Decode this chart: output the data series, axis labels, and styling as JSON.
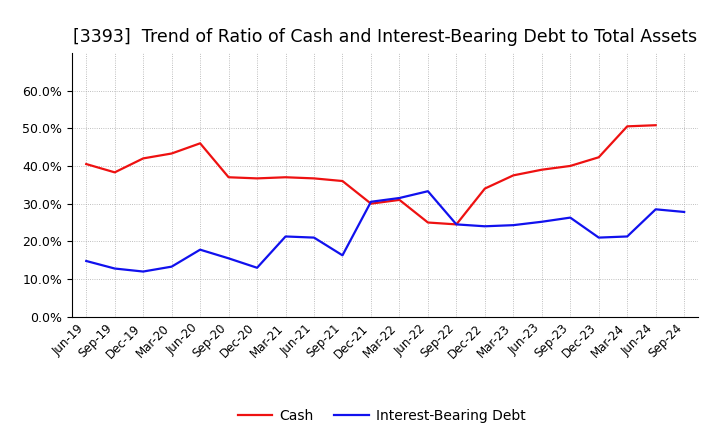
{
  "title": "[3393]  Trend of Ratio of Cash and Interest-Bearing Debt to Total Assets",
  "x_labels": [
    "Jun-19",
    "Sep-19",
    "Dec-19",
    "Mar-20",
    "Jun-20",
    "Sep-20",
    "Dec-20",
    "Mar-21",
    "Jun-21",
    "Sep-21",
    "Dec-21",
    "Mar-22",
    "Jun-22",
    "Sep-22",
    "Dec-22",
    "Mar-23",
    "Jun-23",
    "Sep-23",
    "Dec-23",
    "Mar-24",
    "Jun-24",
    "Sep-24"
  ],
  "cash": [
    0.405,
    0.383,
    0.42,
    0.433,
    0.46,
    0.37,
    0.367,
    0.37,
    0.367,
    0.36,
    0.3,
    0.31,
    0.25,
    0.245,
    0.34,
    0.375,
    0.39,
    0.4,
    0.423,
    0.505,
    0.508,
    null
  ],
  "interest_bearing_debt": [
    0.148,
    0.128,
    0.12,
    0.133,
    0.178,
    0.155,
    0.13,
    0.213,
    0.21,
    0.163,
    0.305,
    0.315,
    0.333,
    0.245,
    0.24,
    0.243,
    0.252,
    0.263,
    0.21,
    0.213,
    0.285,
    0.278
  ],
  "cash_color": "#ee1111",
  "debt_color": "#1111ee",
  "background_color": "#ffffff",
  "grid_color": "#aaaaaa",
  "ylim": [
    0.0,
    0.7
  ],
  "yticks": [
    0.0,
    0.1,
    0.2,
    0.3,
    0.4,
    0.5,
    0.6
  ],
  "legend_cash": "Cash",
  "legend_debt": "Interest-Bearing Debt",
  "title_fontsize": 12.5
}
